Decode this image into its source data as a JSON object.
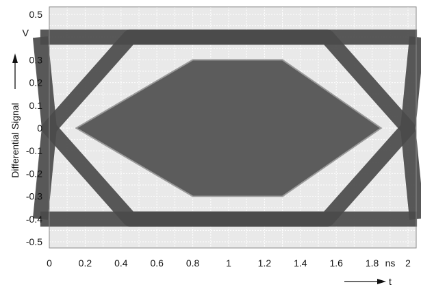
{
  "chart_data": {
    "type": "line",
    "ylabel": "Differential Signal",
    "y_unit": "V",
    "x_unit": "ns",
    "xlabel": "t",
    "xlim": [
      0,
      2.0
    ],
    "ylim": [
      -0.5,
      0.5
    ],
    "grid": true,
    "x_ticks": [
      "0",
      "0.2",
      "0.4",
      "0.6",
      "0.8",
      "1",
      "1.2",
      "1.4",
      "1.6",
      "1.8",
      "2"
    ],
    "y_ticks": [
      "0.5",
      "0.3",
      "0.2",
      "0.1",
      "0",
      "-0.1",
      "-0.2",
      "-0.3",
      "-0.4",
      "-0.5"
    ],
    "series": [
      {
        "kind": "eye-diagram",
        "high_level": 0.4,
        "low_level": -0.4,
        "crossings": [
          0,
          2.0
        ],
        "transition_width_ns": 0.45,
        "color": "#4a4a4a"
      },
      {
        "kind": "eye-mask",
        "x": [
          0.15,
          0.8,
          1.3,
          1.85,
          1.3,
          0.8,
          0.15
        ],
        "y": [
          0,
          0.3,
          0.3,
          0,
          -0.3,
          -0.3,
          0
        ],
        "color": "#5c5c5c"
      }
    ],
    "colors": {
      "plot_background": "#e9e9e9",
      "grid": "#ffffff",
      "traces": "#4a4a4a",
      "mask": "#5c5c5c",
      "mask_edge": "#9a9a9a"
    }
  }
}
